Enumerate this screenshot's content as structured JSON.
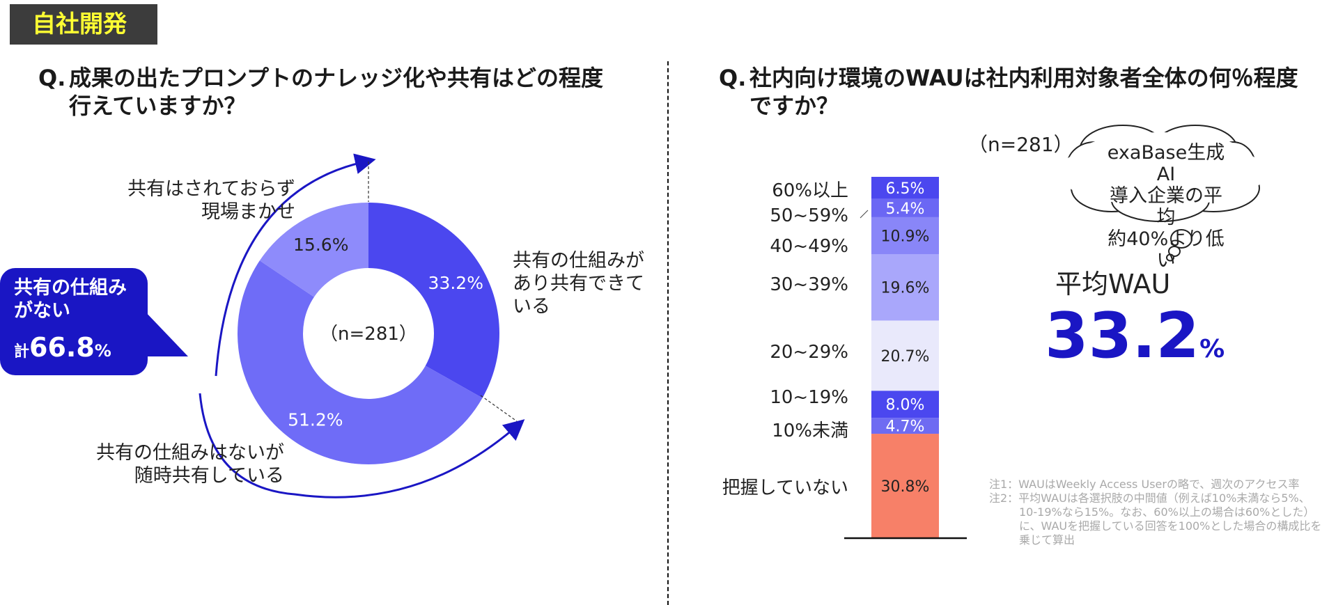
{
  "header": {
    "tag": "自社開発"
  },
  "left": {
    "question_mark": "Q.",
    "question": "成果の出たプロンプトのナレッジ化や共有はどの程度行えていますか？",
    "n_label": "（n=281）",
    "label_shared": [
      "共有の仕組みが",
      "あり共有できて",
      "いる"
    ],
    "label_adhoc": [
      "共有の仕組みはないが",
      "随時共有している"
    ],
    "label_none": [
      "共有はされておらず",
      "現場まかせ"
    ],
    "callout": {
      "line1": "共有の仕組み",
      "line2": "がない",
      "prefix": "計",
      "value": "66.8",
      "unit": "%"
    }
  },
  "right": {
    "question_mark": "Q.",
    "question": "社内向け環境のWAUは社内利用対象者全体の何％程度ですか？",
    "n_label": "（n=281）",
    "cloud": [
      "exaBase生成AI",
      "導入企業の平均",
      "約40%より低い"
    ],
    "avg_label": "平均WAU",
    "avg_value": "33.2",
    "avg_unit": "%",
    "notes": [
      "注1：WAUはWeekly Access Userの略で、週次のアクセス率",
      "注2：平均WAUは各選択肢の中間値（例えば10%未満なら5%、10-19%なら15%。なお、60%以上の場合は60%とした）に、WAUを把握している回答を100%とした場合の構成比を乗じて算出"
    ]
  },
  "colors": {
    "accent": "#1a16c4",
    "tag_bg": "#3c3c3c",
    "tag_text": "#ffff33"
  },
  "chart_data": [
    {
      "type": "pie",
      "variant": "donut",
      "start": "12 o'clock, clockwise",
      "categories": [
        "共有の仕組みがあり共有できている",
        "共有の仕組みはないが随時共有している",
        "共有はされておらず現場まかせ"
      ],
      "values": [
        33.2,
        51.2,
        15.6
      ],
      "value_labels": [
        "33.2%",
        "51.2%",
        "15.6%"
      ],
      "colors": [
        "#4b47ef",
        "#6f6cf7",
        "#8e8bfb"
      ],
      "center_label": "（n=281）"
    },
    {
      "type": "bar",
      "variant": "100% stacked column",
      "categories": [
        "把握していない",
        "10%未満",
        "10~19%",
        "20~29%",
        "30~39%",
        "40~49%",
        "50~59%",
        "60%以上"
      ],
      "values": [
        30.8,
        4.7,
        8.0,
        20.7,
        19.6,
        10.9,
        5.4,
        6.5
      ],
      "value_labels": [
        "30.8%",
        "4.7%",
        "8.0%",
        "20.7%",
        "19.6%",
        "10.9%",
        "5.4%",
        "6.5%"
      ],
      "colors": [
        "#f78068",
        "#6e6bf2",
        "#4b47ef",
        "#e9e9fb",
        "#a9a7fb",
        "#8986f8",
        "#6b67f4",
        "#4b47ef"
      ],
      "label_colors": [
        "#222222",
        "#ffffff",
        "#ffffff",
        "#222222",
        "#222222",
        "#222222",
        "#ffffff",
        "#ffffff"
      ],
      "ylim": [
        0,
        100
      ]
    }
  ]
}
